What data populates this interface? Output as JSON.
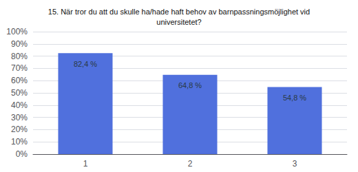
{
  "chart_data": {
    "type": "bar",
    "title": "15. När tror du att du skulle ha/hade haft behov av barnpassningsmöjlighet vid\nuniversitetet?",
    "categories": [
      "1",
      "2",
      "3"
    ],
    "values": [
      82.4,
      64.8,
      54.8
    ],
    "value_labels": [
      "82,4 %",
      "64,8 %",
      "54,8 %"
    ],
    "data_labels": true,
    "ylim": [
      0,
      100
    ],
    "yticks": [
      {
        "value": 0,
        "label": "0%"
      },
      {
        "value": 10,
        "label": "10%"
      },
      {
        "value": 20,
        "label": "20%"
      },
      {
        "value": 30,
        "label": "30%"
      },
      {
        "value": 40,
        "label": "40%"
      },
      {
        "value": 50,
        "label": "50%"
      },
      {
        "value": 60,
        "label": "60%"
      },
      {
        "value": 70,
        "label": "70%"
      },
      {
        "value": 80,
        "label": "80%"
      },
      {
        "value": 90,
        "label": "90%"
      },
      {
        "value": 100,
        "label": "100%"
      }
    ],
    "grid": true
  }
}
